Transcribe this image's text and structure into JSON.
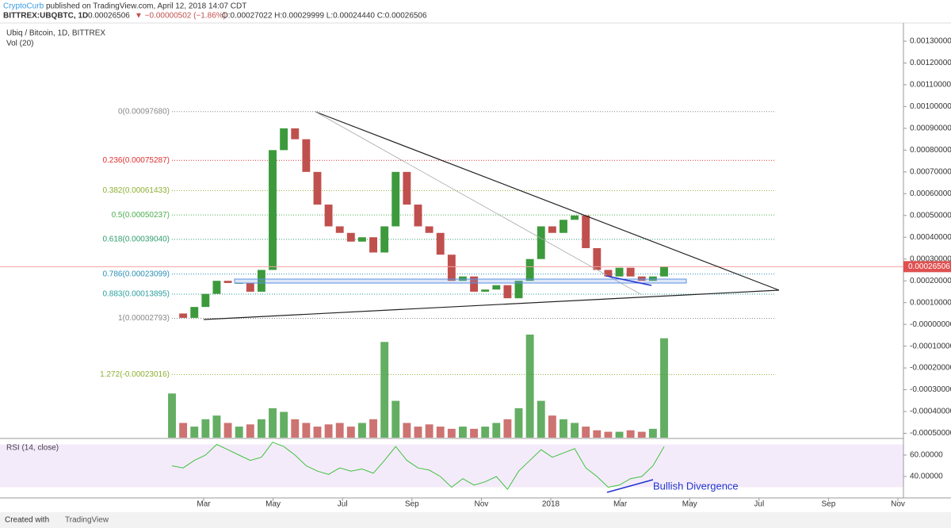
{
  "header": {
    "author": "CryptoCurb",
    "published": "published on TradingView.com, April 12, 2018 14:07 CDT",
    "symbol": "BITTREX:UBQBTC, 1D",
    "last": "0.00026506",
    "change": "▼ −0.00000502 (−1.86%)",
    "ohlc": "O:0.00027022 H:0.00029999 L:0.00024440 C:0.00026506"
  },
  "chart_data": {
    "type": "candlestick",
    "title": "Ubiq / Bitcoin, 1D, BITTREX",
    "volume_title": "Vol (20)",
    "close": [
      5e-05,
      3e-05,
      8e-05,
      0.00014,
      0.0002,
      0.00019,
      0.00019,
      0.00015,
      0.00025,
      0.0008,
      0.0009,
      0.00085,
      0.0007,
      0.00055,
      0.00045,
      0.00042,
      0.00038,
      0.0004,
      0.00033,
      0.00045,
      0.0007,
      0.00055,
      0.00045,
      0.00042,
      0.00032,
      0.0002,
      0.00022,
      0.00015,
      0.00016,
      0.00018,
      0.00012,
      0.0002,
      0.0003,
      0.00045,
      0.00042,
      0.00048,
      0.0005,
      0.00035,
      0.00025,
      0.00022,
      0.00026,
      0.00022,
      0.0002,
      0.00022,
      0.00026506
    ],
    "volume": [
      60,
      20,
      15,
      25,
      30,
      20,
      15,
      18,
      25,
      40,
      35,
      25,
      20,
      15,
      18,
      20,
      15,
      20,
      25,
      130,
      50,
      20,
      15,
      18,
      15,
      12,
      15,
      12,
      15,
      20,
      25,
      40,
      140,
      50,
      30,
      25,
      20,
      15,
      10,
      8,
      8,
      10,
      8,
      12,
      135
    ],
    "up_color": "#3c9a3c",
    "down_color": "#c0504d",
    "ylim": [
      -0.00052,
      0.00138
    ],
    "yticks": [
      {
        "value": 0.0013,
        "label": "0.00130000"
      },
      {
        "value": 0.0012,
        "label": "0.00120000"
      },
      {
        "value": 0.0011,
        "label": "0.00110000"
      },
      {
        "value": 0.001,
        "label": "0.00100000"
      },
      {
        "value": 0.0009,
        "label": "0.00090000"
      },
      {
        "value": 0.0008,
        "label": "0.00080000"
      },
      {
        "value": 0.0007,
        "label": "0.00070000"
      },
      {
        "value": 0.0006,
        "label": "0.00060000"
      },
      {
        "value": 0.0005,
        "label": "0.00050000"
      },
      {
        "value": 0.0004,
        "label": "0.00040000"
      },
      {
        "value": 0.0003,
        "label": "0.00030000"
      },
      {
        "value": 0.0002,
        "label": "0.00020000"
      },
      {
        "value": 0.0001,
        "label": "0.00010000"
      },
      {
        "value": 0,
        "label": "-0.00000000"
      },
      {
        "value": -0.0001,
        "label": "-0.00010000"
      },
      {
        "value": -0.0002,
        "label": "-0.00020000"
      },
      {
        "value": -0.0003,
        "label": "-0.00030000"
      },
      {
        "value": -0.0004,
        "label": "-0.00040000"
      },
      {
        "value": -0.0005,
        "label": "-0.00050000"
      }
    ],
    "last_price": {
      "value": 0.00026506,
      "label": "0.00026506"
    },
    "fib": [
      {
        "value": 0.0009768,
        "label": "0(0.00097680)",
        "color": "#888888"
      },
      {
        "value": 0.00075287,
        "label": "0.236(0.00075287)",
        "color": "#e03030"
      },
      {
        "value": 0.00061433,
        "label": "0.382(0.00061433)",
        "color": "#8cb032"
      },
      {
        "value": 0.00050237,
        "label": "0.5(0.00050237)",
        "color": "#4caf50"
      },
      {
        "value": 0.0003904,
        "label": "0.618(0.00039040)",
        "color": "#2e9e6e"
      },
      {
        "value": 0.00023099,
        "label": "0.786(0.00023099)",
        "color": "#2a8fb5"
      },
      {
        "value": 0.00013895,
        "label": "0.883(0.00013895)",
        "color": "#2a9e9e"
      },
      {
        "value": 2.793e-05,
        "label": "1(0.00002793)",
        "color": "#888888"
      },
      {
        "value": -0.00023016,
        "label": "1.272(-0.00023016)",
        "color": "#8cb032"
      }
    ],
    "rsi_title": "RSI (14, close)",
    "rsi": [
      50,
      48,
      55,
      60,
      70,
      65,
      60,
      55,
      58,
      72,
      68,
      60,
      50,
      45,
      42,
      48,
      45,
      47,
      43,
      55,
      68,
      55,
      48,
      46,
      40,
      30,
      38,
      32,
      35,
      40,
      28,
      45,
      55,
      65,
      58,
      62,
      66,
      48,
      40,
      30,
      32,
      38,
      40,
      50,
      68
    ],
    "rsi_color": "#3ec23e",
    "rsi_ylim": [
      20,
      73.3
    ],
    "rsi_band": [
      30,
      70
    ],
    "rsi_yticks": [
      {
        "value": 60,
        "label": "60.00000"
      },
      {
        "value": 40,
        "label": "40.00000"
      }
    ],
    "annotation": "Bullish Divergence",
    "xticks": [
      "Mar",
      "May",
      "Jul",
      "Sep",
      "Nov",
      "2018",
      "Mar",
      "May",
      "Jul",
      "Sep",
      "Nov"
    ]
  },
  "footer": {
    "created": "Created with",
    "brand": "TradingView"
  }
}
